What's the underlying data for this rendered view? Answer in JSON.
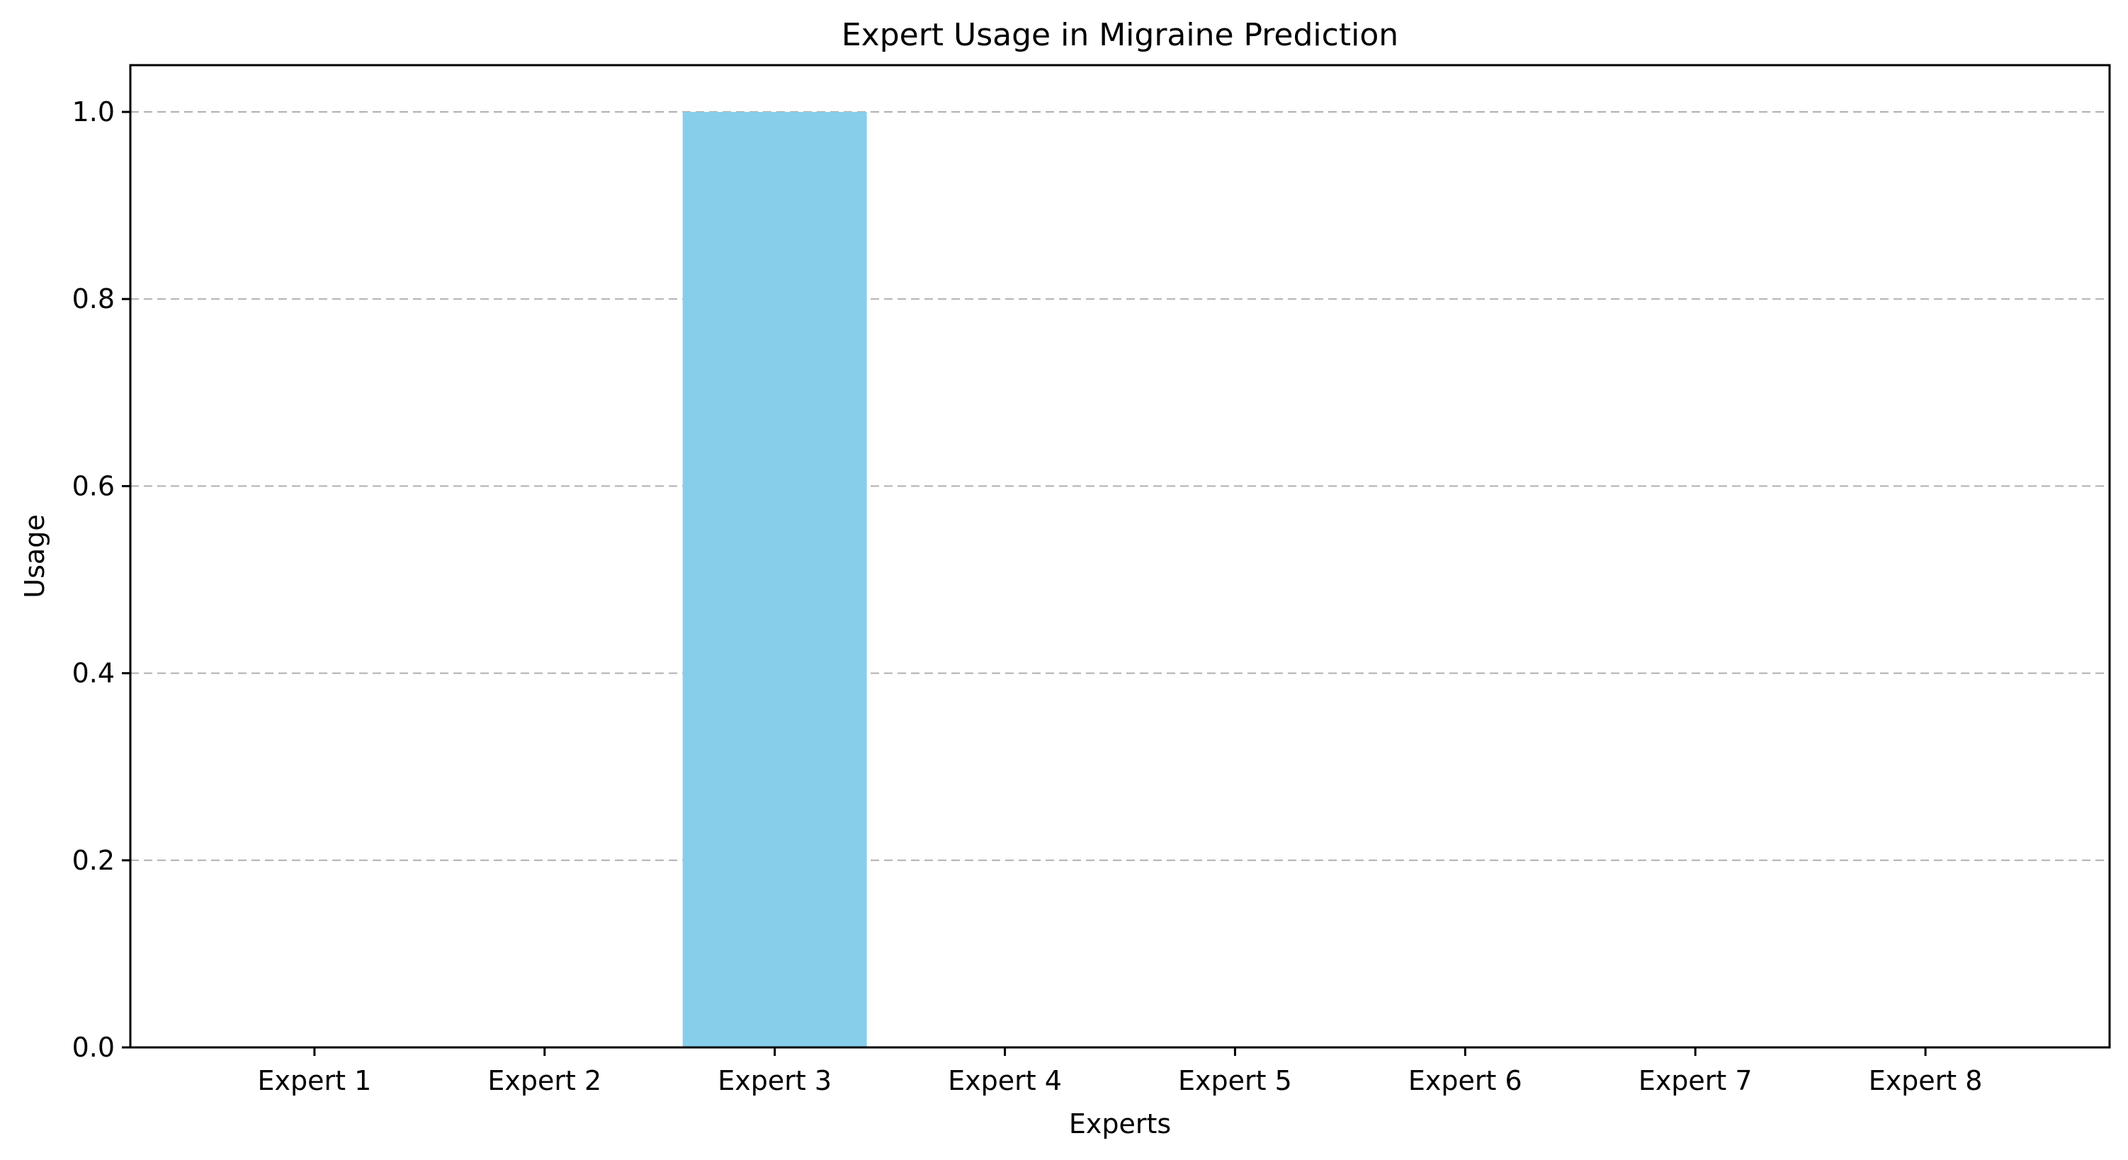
{
  "chart_data": {
    "type": "bar",
    "title": "Expert Usage in Migraine Prediction",
    "xlabel": "Experts",
    "ylabel": "Usage",
    "categories": [
      "Expert 1",
      "Expert 2",
      "Expert 3",
      "Expert 4",
      "Expert 5",
      "Expert 6",
      "Expert 7",
      "Expert 8"
    ],
    "values": [
      0,
      0,
      1.0,
      0,
      0,
      0,
      0,
      0
    ],
    "ylim": [
      0,
      1.05
    ],
    "yticks": [
      0.0,
      0.2,
      0.4,
      0.6,
      0.8,
      1.0
    ],
    "ytick_labels": [
      "0.0",
      "0.2",
      "0.4",
      "0.6",
      "0.8",
      "1.0"
    ],
    "grid": "y-axis dashed",
    "bar_color": "#87ceeb",
    "legend": "none"
  }
}
